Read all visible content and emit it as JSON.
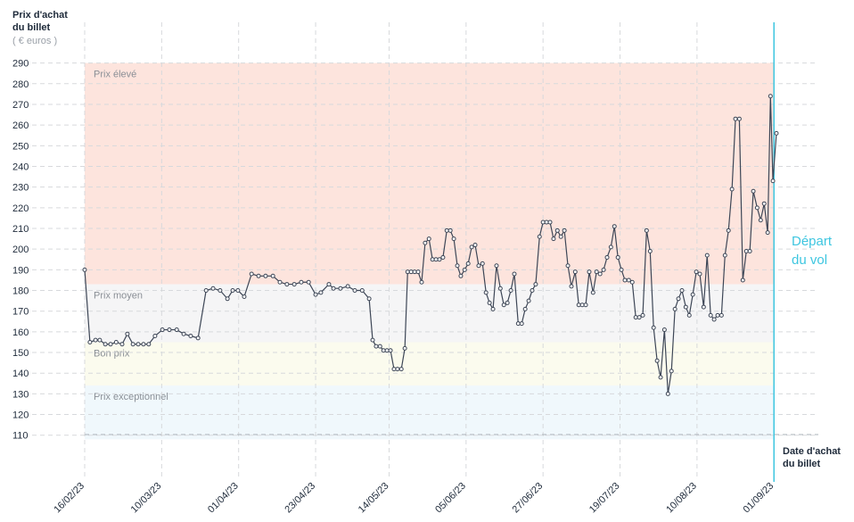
{
  "chart_data": {
    "type": "line",
    "y_title": "Prix d'achat du billet",
    "y_unit": "( € euros )",
    "x_title": "Date d'achat du billet",
    "event": {
      "label": "Départ du vol",
      "x": 197,
      "color": "#3ec6e0"
    },
    "color": "#3d4656",
    "grid": true,
    "ylim": [
      106,
      292
    ],
    "yticks": [
      110,
      120,
      130,
      140,
      150,
      160,
      170,
      180,
      190,
      200,
      210,
      220,
      230,
      240,
      250,
      260,
      270,
      280,
      290
    ],
    "xlim": [
      0,
      200
    ],
    "xticks": [
      {
        "value": 0,
        "label": "16/02/23"
      },
      {
        "value": 22,
        "label": "10/03/23"
      },
      {
        "value": 44,
        "label": "01/04/23"
      },
      {
        "value": 66,
        "label": "23/04/23"
      },
      {
        "value": 87,
        "label": "14/05/23"
      },
      {
        "value": 109,
        "label": "05/06/23"
      },
      {
        "value": 131,
        "label": "27/06/23"
      },
      {
        "value": 153,
        "label": "19/07/23"
      },
      {
        "value": 175,
        "label": "10/08/23"
      },
      {
        "value": 197,
        "label": "01/09/23"
      }
    ],
    "bands": [
      {
        "name": "Prix élevé",
        "from": 183,
        "to": 290,
        "color": "#fde4dd"
      },
      {
        "name": "Prix moyen",
        "from": 155,
        "to": 183,
        "color": "#f5f5f6"
      },
      {
        "name": "Bon prix",
        "from": 134,
        "to": 155,
        "color": "#fbfbee"
      },
      {
        "name": "Prix exceptionnel",
        "from": 108,
        "to": 134,
        "color": "#f0f8fc"
      }
    ],
    "x": [
      0,
      1.5,
      3.1,
      4.3,
      5.9,
      7.4,
      9.0,
      10.7,
      12.2,
      13.8,
      15.3,
      16.8,
      18.3,
      20.1,
      22.2,
      24.2,
      26.3,
      28.3,
      30.3,
      32.4,
      34.7,
      36.7,
      38.7,
      40.8,
      42.3,
      43.8,
      45.6,
      47.7,
      49.7,
      51.7,
      53.8,
      55.8,
      57.8,
      59.9,
      61.9,
      64.0,
      66.0,
      67.5,
      69.8,
      71.1,
      73.1,
      75.2,
      77.2,
      79.3,
      81.3,
      82.3,
      83.3,
      84.4,
      85.4,
      86.4,
      87.4,
      88.4,
      89.4,
      90.5,
      91.5,
      92.3,
      93.3,
      94.3,
      95.3,
      96.3,
      97.3,
      98.4,
      99.4,
      100.4,
      101.4,
      102.4,
      103.5,
      104.5,
      105.5,
      106.5,
      107.5,
      108.6,
      109.6,
      110.6,
      111.6,
      112.6,
      113.7,
      114.7,
      115.7,
      116.7,
      117.7,
      118.8,
      119.8,
      120.8,
      121.8,
      122.8,
      123.9,
      124.9,
      125.9,
      126.9,
      127.9,
      128.9,
      130.0,
      131.0,
      132.0,
      133.0,
      134.0,
      135.1,
      136.1,
      137.1,
      138.1,
      139.1,
      140.2,
      141.2,
      142.2,
      143.2,
      144.2,
      145.3,
      146.3,
      147.3,
      148.3,
      149.3,
      150.4,
      151.4,
      152.4,
      153.4,
      154.4,
      155.5,
      156.5,
      157.5,
      158.5,
      159.5,
      160.6,
      161.6,
      162.6,
      163.6,
      164.6,
      165.7,
      166.7,
      167.7,
      168.7,
      169.7,
      170.7,
      171.8,
      172.8,
      173.8,
      174.8,
      175.8,
      176.9,
      177.9,
      178.9,
      179.9,
      180.9,
      182.0,
      183.0,
      184.0,
      185.0,
      186.0,
      187.1,
      188.1,
      189.1,
      190.1,
      191.1,
      192.2,
      193.2,
      194.2,
      195.2,
      196.0,
      196.7,
      197.7
    ],
    "values": [
      190,
      155,
      156,
      156,
      154,
      154,
      155,
      154,
      159,
      154,
      154,
      154,
      154,
      158,
      161,
      161,
      161,
      159,
      158,
      157,
      180,
      181,
      180,
      176,
      180,
      180,
      177,
      188,
      187,
      187,
      187,
      184,
      183,
      183,
      184,
      184,
      178,
      179,
      183,
      181,
      181,
      182,
      180,
      180,
      176,
      156,
      153,
      153,
      151,
      151,
      151,
      142,
      142,
      142,
      152,
      189,
      189,
      189,
      189,
      184,
      203,
      205,
      195,
      195,
      195,
      196,
      209,
      209,
      205,
      192,
      187,
      190,
      193,
      201,
      202,
      192,
      193,
      179,
      174,
      171,
      192,
      181,
      173,
      174,
      180,
      188,
      164,
      164,
      171,
      175,
      180,
      183,
      206,
      213,
      213,
      213,
      205,
      209,
      206,
      209,
      192,
      182,
      189,
      173,
      173,
      173,
      189,
      179,
      189,
      188,
      190,
      196,
      201,
      211,
      196,
      190,
      185,
      185,
      184,
      167,
      167,
      168,
      209,
      199,
      162,
      146,
      138,
      161,
      130,
      141,
      171,
      176,
      180,
      172,
      168,
      178,
      189,
      188,
      172,
      197,
      168,
      166,
      168,
      168,
      197,
      209,
      229,
      263,
      263,
      185,
      199,
      199,
      228,
      220,
      214,
      222,
      208,
      274,
      233,
      256
    ]
  }
}
